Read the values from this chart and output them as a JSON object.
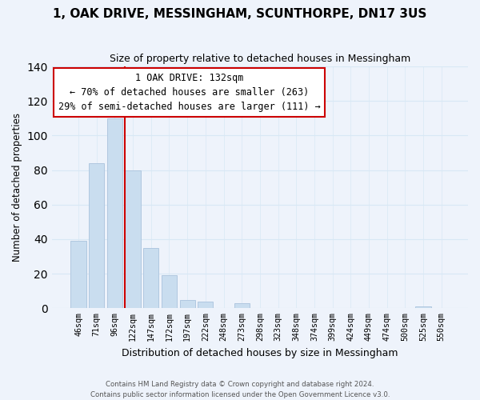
{
  "title": "1, OAK DRIVE, MESSINGHAM, SCUNTHORPE, DN17 3US",
  "subtitle": "Size of property relative to detached houses in Messingham",
  "xlabel": "Distribution of detached houses by size in Messingham",
  "ylabel": "Number of detached properties",
  "bar_labels": [
    "46sqm",
    "71sqm",
    "96sqm",
    "122sqm",
    "147sqm",
    "172sqm",
    "197sqm",
    "222sqm",
    "248sqm",
    "273sqm",
    "298sqm",
    "323sqm",
    "348sqm",
    "374sqm",
    "399sqm",
    "424sqm",
    "449sqm",
    "474sqm",
    "500sqm",
    "525sqm",
    "550sqm"
  ],
  "bar_values": [
    39,
    84,
    110,
    80,
    35,
    19,
    5,
    4,
    0,
    3,
    0,
    0,
    0,
    0,
    0,
    0,
    0,
    0,
    0,
    1,
    0
  ],
  "bar_color": "#c9ddef",
  "bar_edge_color": "#b0c8e0",
  "grid_color": "#d8e8f5",
  "reference_line_color": "#cc0000",
  "annotation_box_color": "#ffffff",
  "annotation_box_edge_color": "#cc0000",
  "annotation_title": "1 OAK DRIVE: 132sqm",
  "annotation_line1": "← 70% of detached houses are smaller (263)",
  "annotation_line2": "29% of semi-detached houses are larger (111) →",
  "ylim": [
    0,
    140
  ],
  "yticks": [
    0,
    20,
    40,
    60,
    80,
    100,
    120,
    140
  ],
  "footer_line1": "Contains HM Land Registry data © Crown copyright and database right 2024.",
  "footer_line2": "Contains public sector information licensed under the Open Government Licence v3.0.",
  "background_color": "#eef3fb",
  "plot_background_color": "#eef3fb"
}
